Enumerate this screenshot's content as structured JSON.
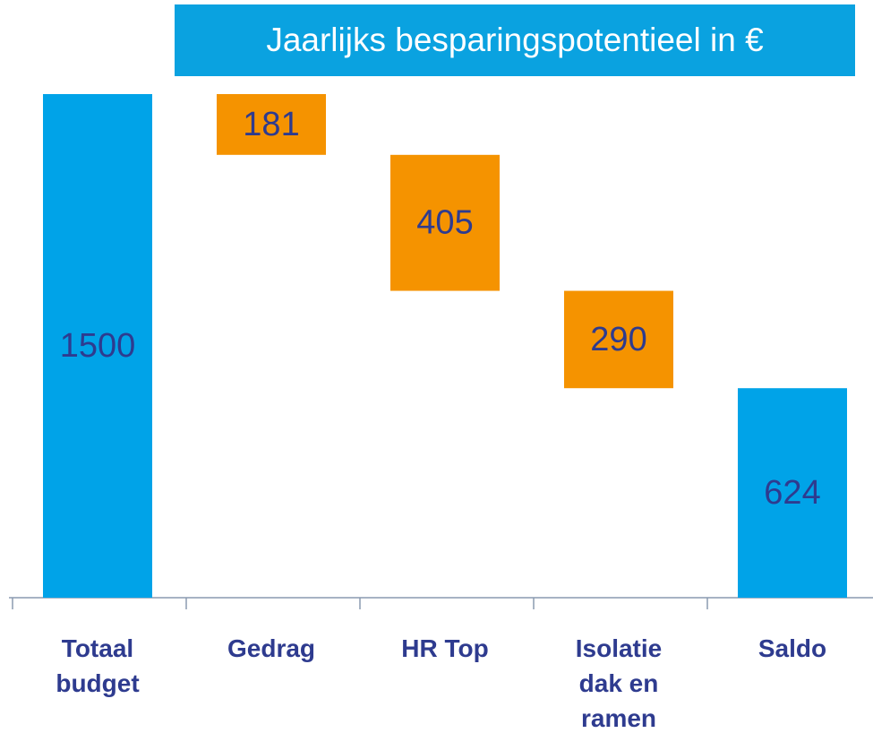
{
  "chart_data": {
    "type": "waterfall",
    "title": "Jaarlijks besparingspotentieel in €",
    "categories": [
      "Totaal budget",
      "Gedrag",
      "HR Top",
      "Isolatie dak en ramen",
      "Saldo"
    ],
    "values": [
      1500,
      181,
      405,
      290,
      624
    ],
    "measures": [
      "absolute",
      "decrease",
      "decrease",
      "decrease",
      "total"
    ],
    "total_color": "#00a3e8",
    "decrease_color": "#f59300",
    "ylim": [
      0,
      1500
    ]
  }
}
